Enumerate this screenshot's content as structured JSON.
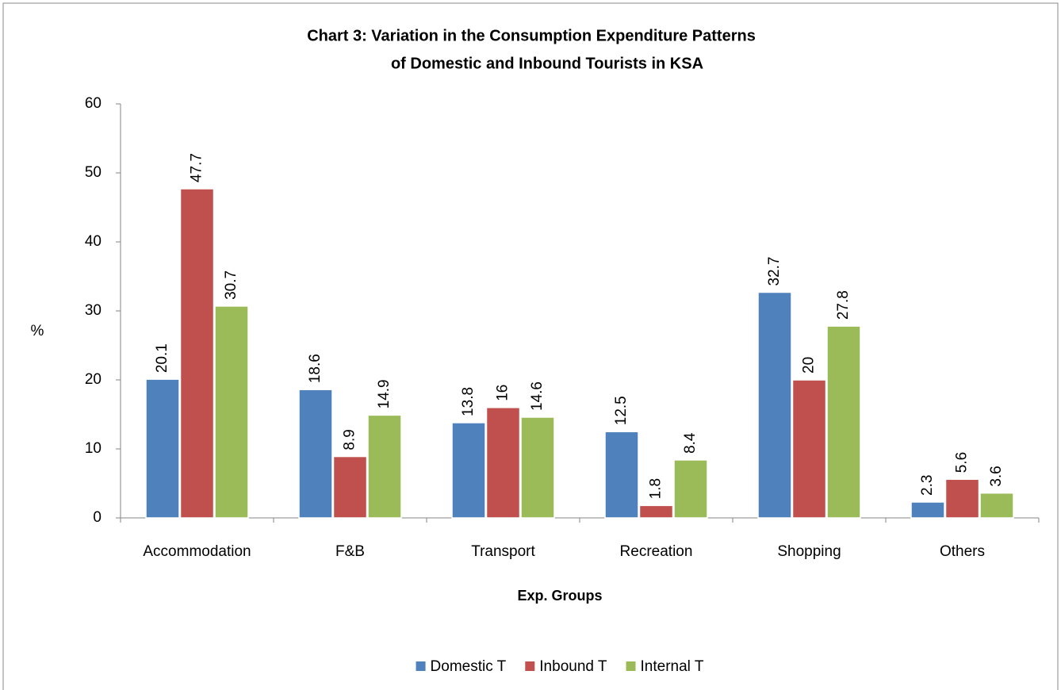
{
  "chart_data": {
    "type": "bar",
    "title": [
      "Chart 3: Variation in the Consumption Expenditure Patterns",
      "of Domestic and Inbound Tourists in KSA"
    ],
    "x_label": "Exp. Groups",
    "y_label": "%",
    "categories": [
      "Accommodation",
      "F&B",
      "Transport",
      "Recreation",
      "Shopping",
      "Others"
    ],
    "series": [
      {
        "name": "Domestic T",
        "color": "#4f81bd",
        "values": [
          20.1,
          18.6,
          13.8,
          12.5,
          32.7,
          2.3
        ]
      },
      {
        "name": "Inbound T",
        "color": "#c0504d",
        "values": [
          47.7,
          8.9,
          16,
          1.8,
          20,
          5.6
        ]
      },
      {
        "name": "Internal T",
        "color": "#9bbb59",
        "values": [
          30.7,
          14.9,
          14.6,
          8.4,
          27.8,
          3.6
        ]
      }
    ],
    "ylim": [
      0,
      60
    ],
    "yticks": [
      0,
      10,
      20,
      30,
      40,
      50,
      60
    ],
    "legend": "bottom"
  }
}
